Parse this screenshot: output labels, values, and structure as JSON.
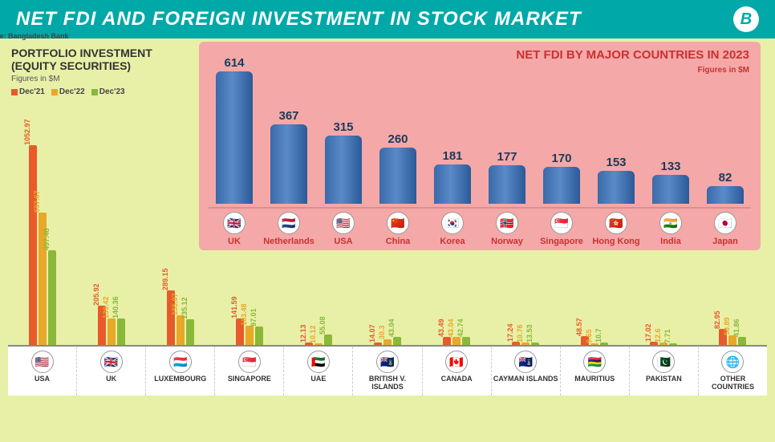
{
  "header": {
    "title": "NET FDI AND FOREIGN INVESTMENT IN STOCK MARKET",
    "logo": "B"
  },
  "colors": {
    "headerBg": "#00a8a8",
    "pageBg": "#e8f0a8",
    "fdiPanelBg": "#f5a8a8",
    "fdiBar": "#3a6aa8",
    "fdiText": "#c83232",
    "dec21": "#e85a2a",
    "dec22": "#e8a828",
    "dec23": "#8ab838"
  },
  "fdi": {
    "title": "NET FDI BY MAJOR COUNTRIES IN 2023",
    "subtitle": "Figures in $M",
    "maxVal": 650,
    "countries": [
      {
        "name": "UK",
        "value": 614,
        "flag": "🇬🇧"
      },
      {
        "name": "Netherlands",
        "value": 367,
        "flag": "🇳🇱"
      },
      {
        "name": "USA",
        "value": 315,
        "flag": "🇺🇸"
      },
      {
        "name": "China",
        "value": 260,
        "flag": "🇨🇳"
      },
      {
        "name": "Korea",
        "value": 181,
        "flag": "🇰🇷"
      },
      {
        "name": "Norway",
        "value": 177,
        "flag": "🇳🇴"
      },
      {
        "name": "Singapore",
        "value": 170,
        "flag": "🇸🇬"
      },
      {
        "name": "Hong Kong",
        "value": 153,
        "flag": "🇭🇰"
      },
      {
        "name": "India",
        "value": 133,
        "flag": "🇮🇳"
      },
      {
        "name": "Japan",
        "value": 82,
        "flag": "🇯🇵"
      }
    ]
  },
  "portfolio": {
    "title": "PORTFOLIO INVESTMENT (EQUITY SECURITIES)",
    "subtitle": "Figures in $M",
    "legend": [
      {
        "label": "Dec'21",
        "color": "#e85a2a"
      },
      {
        "label": "Dec'22",
        "color": "#e8a828"
      },
      {
        "label": "Dec'23",
        "color": "#8ab838"
      }
    ],
    "maxVal": 1100,
    "source": "Source: Bangladesh Bank",
    "countries": [
      {
        "name": "USA",
        "flag": "🇺🇸",
        "values": [
          1052.97,
          697.67,
          497.48
        ]
      },
      {
        "name": "UK",
        "flag": "🇬🇧",
        "values": [
          205.92,
          139.42,
          140.36
        ]
      },
      {
        "name": "LUXEMBOURG",
        "flag": "🇱🇺",
        "values": [
          289.15,
          155.07,
          135.12
        ]
      },
      {
        "name": "SINGAPORE",
        "flag": "🇸🇬",
        "values": [
          141.59,
          103.48,
          97.01
        ]
      },
      {
        "name": "UAE",
        "flag": "🇦🇪",
        "values": [
          12.13,
          10.12,
          55.08
        ]
      },
      {
        "name": "BRITISH V. ISLANDS",
        "flag": "🇻🇬",
        "values": [
          14.07,
          30.3,
          43.04
        ]
      },
      {
        "name": "CANADA",
        "flag": "🇨🇦",
        "values": [
          43.49,
          43.04,
          42.74
        ]
      },
      {
        "name": "CAYMAN ISLANDS",
        "flag": "🇰🇾",
        "values": [
          17.24,
          10.76,
          13.53
        ]
      },
      {
        "name": "MAURITIUS",
        "flag": "🇲🇺",
        "values": [
          48.57,
          9.65,
          10.7
        ]
      },
      {
        "name": "PAKISTAN",
        "flag": "🇵🇰",
        "values": [
          17.02,
          12.6,
          7.71
        ]
      },
      {
        "name": "OTHER COUNTRIES",
        "flag": "🌐",
        "values": [
          82.95,
          50.89,
          41.86
        ]
      }
    ]
  }
}
